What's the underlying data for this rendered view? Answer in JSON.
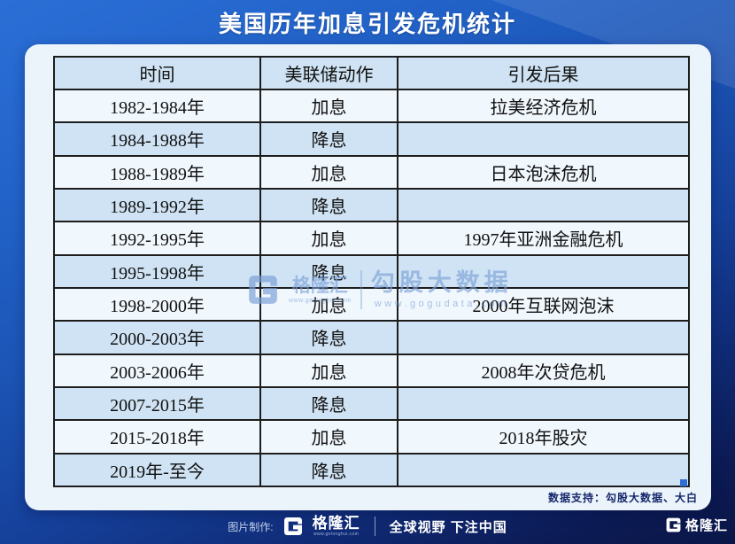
{
  "title": "美国历年加息引发危机统计",
  "chart_data": {
    "type": "table",
    "title": "美国历年加息引发危机统计",
    "columns": [
      "时间",
      "美联储动作",
      "引发后果"
    ],
    "rows": [
      [
        "1982-1984年",
        "加息",
        "拉美经济危机"
      ],
      [
        "1984-1988年",
        "降息",
        ""
      ],
      [
        "1988-1989年",
        "加息",
        "日本泡沫危机"
      ],
      [
        "1989-1992年",
        "降息",
        ""
      ],
      [
        "1992-1995年",
        "加息",
        "1997年亚洲金融危机"
      ],
      [
        "1995-1998年",
        "降息",
        ""
      ],
      [
        "1998-2000年",
        "加息",
        "2000年互联网泡沫"
      ],
      [
        "2000-2003年",
        "降息",
        ""
      ],
      [
        "2003-2006年",
        "加息",
        "2008年次贷危机"
      ],
      [
        "2007-2015年",
        "降息",
        ""
      ],
      [
        "2015-2018年",
        "加息",
        "2018年股灾"
      ],
      [
        "2019年-至今",
        "降息",
        ""
      ]
    ]
  },
  "watermark": {
    "brand": "格隆汇",
    "brand_url": "www.gelonghui.com",
    "product": "勾股大数据",
    "product_url": "www.gogudata.com"
  },
  "notes": {
    "data_support": "数据支持：勾股大数据、大白"
  },
  "footer": {
    "credit_label": "图片制作:",
    "brand": "格隆汇",
    "brand_url": "www.gelonghui.com",
    "slogan": "全球视野 下注中国",
    "corner_brand": "格隆汇"
  },
  "colors": {
    "accent_blue": "#2166cb",
    "dark_navy": "#0c1b55",
    "card_bg": "#ecf4fb",
    "row_alt": "#cfe3f4",
    "row_light": "#f0f7fd",
    "table_border": "#1d1d1d",
    "watermark_blue": "#7aa0d6"
  }
}
